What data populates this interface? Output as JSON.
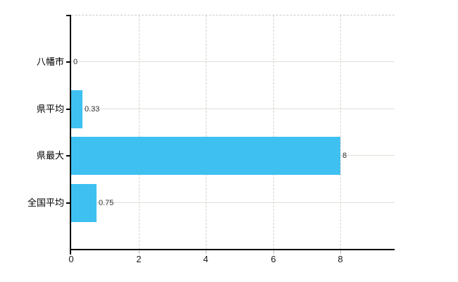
{
  "chart_data": {
    "type": "bar",
    "orientation": "horizontal",
    "title": "",
    "categories": [
      "八幡市",
      "県平均",
      "県最大",
      "全国平均"
    ],
    "values": [
      0,
      0.33,
      8,
      0.75
    ],
    "value_labels": [
      "0",
      "0.33",
      "8",
      "0.75"
    ],
    "x_tick_labels": [
      "0",
      "2",
      "4",
      "6",
      "8"
    ],
    "x_tick_values": [
      0,
      2,
      4,
      6,
      8
    ],
    "xlim": [
      0,
      9.6
    ],
    "ylabel": "",
    "xlabel": "",
    "legend": null,
    "grid": {
      "horizontal_solid": true,
      "vertical_dashed": true,
      "top_border_dashed": true
    },
    "colors": {
      "bar": "#3ec0f1",
      "axis": "#000000",
      "grid_h": "#dbe2d6",
      "grid_v": "#d8d2cc",
      "top_border": "#cccccc",
      "minor_tick": "#bbbbbb",
      "value_label": "#333333",
      "tick_label": "#1a1a1a",
      "background": "#ffffff"
    }
  }
}
